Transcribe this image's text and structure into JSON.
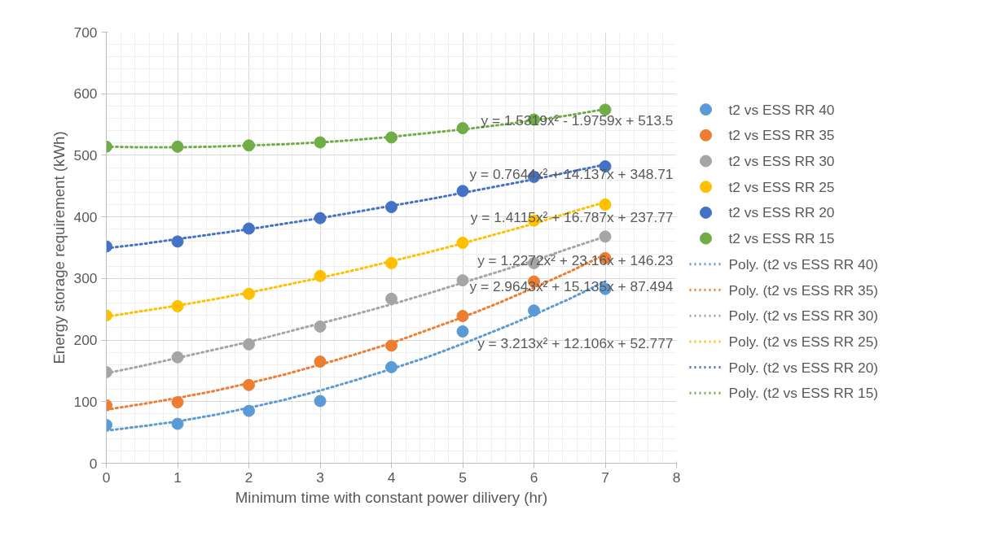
{
  "chart_data": {
    "type": "scatter",
    "xlabel": "Minimum time with constant power dilivery (hr)",
    "ylabel": "Energy storage requirement (kWh)",
    "x": [
      0,
      1,
      2,
      3,
      4,
      5,
      6,
      7
    ],
    "xlim": [
      0,
      8
    ],
    "xticks": [
      0,
      1,
      2,
      3,
      4,
      5,
      6,
      7,
      8
    ],
    "ylim": [
      0,
      700
    ],
    "yticks": [
      0,
      100,
      200,
      300,
      400,
      500,
      600,
      700
    ],
    "grid": true,
    "legend": "right",
    "marker": "circle",
    "series": [
      {
        "name": "t2 vs ESS RR 40",
        "color": "#5b9bd5",
        "values": [
          62,
          64,
          85,
          101,
          156,
          214,
          248,
          283
        ]
      },
      {
        "name": "t2 vs ESS RR 35",
        "color": "#ed7d31",
        "values": [
          94,
          99,
          127,
          165,
          191,
          239,
          295,
          333
        ]
      },
      {
        "name": "t2 vs ESS RR 30",
        "color": "#a5a5a5",
        "values": [
          148,
          172,
          193,
          222,
          267,
          297,
          325,
          368
        ]
      },
      {
        "name": "t2 vs ESS RR 25",
        "color": "#ffc000",
        "values": [
          240,
          255,
          275,
          304,
          325,
          358,
          394,
          420
        ]
      },
      {
        "name": "t2 vs ESS RR 20",
        "color": "#4472c4",
        "values": [
          352,
          360,
          381,
          398,
          416,
          442,
          465,
          482
        ]
      },
      {
        "name": "t2 vs ESS RR 15",
        "color": "#70ad47",
        "values": [
          514,
          514,
          516,
          521,
          529,
          544,
          558,
          574
        ]
      },
      {
        "name": "Poly. (t2 vs ESS RR 40)",
        "type": "line",
        "line_style": "dotted",
        "marker": "none",
        "color": "#5b9bd5",
        "x": [
          0,
          0.5,
          1,
          1.5,
          2,
          2.5,
          3,
          3.5,
          4,
          4.5,
          5,
          5.5,
          6,
          6.5,
          7
        ],
        "values": [
          53,
          60,
          68,
          78,
          90,
          103,
          118,
          135,
          153,
          172,
          194,
          217,
          241,
          267,
          295
        ]
      },
      {
        "name": "Poly. (t2 vs ESS RR 35)",
        "type": "line",
        "line_style": "dotted",
        "marker": "none",
        "color": "#ed7d31",
        "x": [
          0,
          0.5,
          1,
          1.5,
          2,
          2.5,
          3,
          3.5,
          4,
          4.5,
          5,
          5.5,
          6,
          6.5,
          7
        ],
        "values": [
          87,
          96,
          106,
          117,
          130,
          144,
          160,
          177,
          195,
          216,
          237,
          260,
          285,
          311,
          339
        ]
      },
      {
        "name": "Poly. (t2 vs ESS RR 30)",
        "type": "line",
        "line_style": "dotted",
        "marker": "none",
        "color": "#a5a5a5",
        "x": [
          0,
          0.5,
          1,
          1.5,
          2,
          2.5,
          3,
          3.5,
          4,
          4.5,
          5,
          5.5,
          6,
          6.5,
          7
        ],
        "values": [
          146,
          158,
          171,
          184,
          197,
          212,
          227,
          242,
          258,
          275,
          293,
          311,
          329,
          349,
          368
        ]
      },
      {
        "name": "Poly. (t2 vs ESS RR 25)",
        "type": "line",
        "line_style": "dotted",
        "marker": "none",
        "color": "#ffc000",
        "x": [
          0,
          0.5,
          1,
          1.5,
          2,
          2.5,
          3,
          3.5,
          4,
          4.5,
          5,
          5.5,
          6,
          6.5,
          7
        ],
        "values": [
          238,
          247,
          256,
          266,
          277,
          289,
          301,
          314,
          328,
          342,
          357,
          373,
          389,
          407,
          424
        ]
      },
      {
        "name": "Poly. (t2 vs ESS RR 20)",
        "type": "line",
        "line_style": "dotted",
        "marker": "none",
        "color": "#4472c4",
        "x": [
          0,
          0.5,
          1,
          1.5,
          2,
          2.5,
          3,
          3.5,
          4,
          4.5,
          5,
          5.5,
          6,
          6.5,
          7
        ],
        "values": [
          349,
          356,
          364,
          372,
          380,
          389,
          398,
          408,
          418,
          428,
          439,
          450,
          461,
          473,
          485
        ]
      },
      {
        "name": "Poly. (t2 vs ESS RR 15)",
        "type": "line",
        "line_style": "dotted",
        "marker": "none",
        "color": "#70ad47",
        "x": [
          0,
          0.5,
          1,
          1.5,
          2,
          2.5,
          3,
          3.5,
          4,
          4.5,
          5,
          5.5,
          6,
          6.5,
          7
        ],
        "values": [
          514,
          513,
          513,
          514,
          516,
          518,
          521,
          525,
          530,
          536,
          542,
          549,
          557,
          565,
          575
        ]
      }
    ],
    "annotations": [
      "y = 1.5319x² - 1.9759x + 513.5",
      "y = 0.7644x² + 14.137x + 348.71",
      "y = 1.4115x² + 16.787x + 237.77",
      "y = 1.2272x² + 23.16x + 146.23",
      "y = 2.9643x² + 15.135x + 87.494",
      "y = 3.213x² + 12.106x + 52.777"
    ]
  }
}
